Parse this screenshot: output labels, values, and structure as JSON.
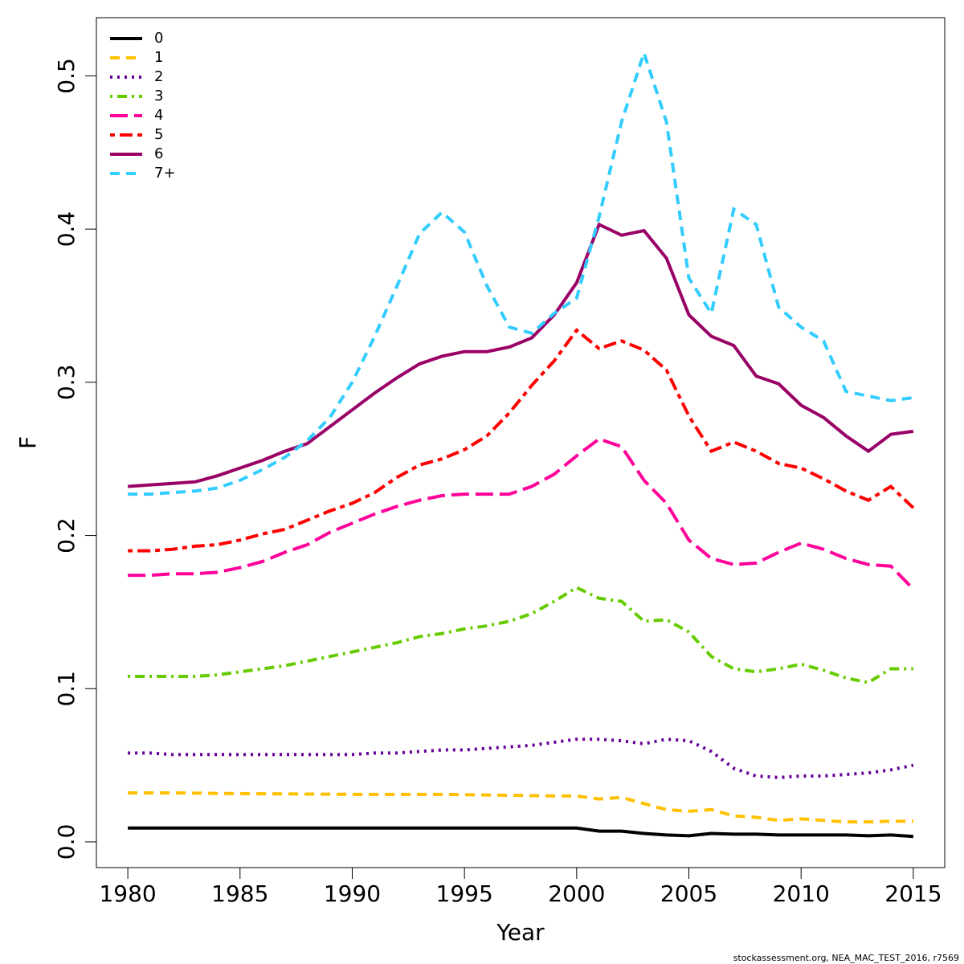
{
  "chart_data": {
    "type": "line",
    "xlabel": "Year",
    "ylabel": "F",
    "caption": "stockassessment.org, NEA_MAC_TEST_2016, r7569",
    "x": [
      1980,
      1981,
      1982,
      1983,
      1984,
      1985,
      1986,
      1987,
      1988,
      1989,
      1990,
      1991,
      1992,
      1993,
      1994,
      1995,
      1996,
      1997,
      1998,
      1999,
      2000,
      2001,
      2002,
      2003,
      2004,
      2005,
      2006,
      2007,
      2008,
      2009,
      2010,
      2011,
      2012,
      2013,
      2014,
      2015
    ],
    "xlim": [
      1978.6,
      2016.4
    ],
    "xticks": [
      1980,
      1985,
      1990,
      1995,
      2000,
      2005,
      2010,
      2015
    ],
    "ylim": [
      -0.0168,
      0.538
    ],
    "yticks": [
      {
        "value": 0,
        "label": "0.0"
      },
      0.1,
      0.2,
      0.3,
      0.4,
      0.5
    ],
    "legend": "topleft",
    "series": [
      {
        "name": "0",
        "color": "#000000",
        "dash": "solid",
        "values": [
          0.009,
          0.009,
          0.009,
          0.009,
          0.009,
          0.009,
          0.009,
          0.009,
          0.009,
          0.009,
          0.009,
          0.009,
          0.009,
          0.009,
          0.009,
          0.009,
          0.009,
          0.009,
          0.009,
          0.009,
          0.009,
          0.007,
          0.007,
          0.0055,
          0.0045,
          0.004,
          0.0055,
          0.005,
          0.005,
          0.0045,
          0.0045,
          0.0045,
          0.0045,
          0.004,
          0.0045,
          0.0035
        ]
      },
      {
        "name": "1",
        "color": "#ffc000",
        "dash": "dashed",
        "values": [
          0.032,
          0.032,
          0.032,
          0.0318,
          0.0316,
          0.0315,
          0.0314,
          0.0313,
          0.0312,
          0.0311,
          0.031,
          0.031,
          0.031,
          0.031,
          0.031,
          0.0308,
          0.0306,
          0.0304,
          0.0302,
          0.03,
          0.03,
          0.028,
          0.029,
          0.025,
          0.021,
          0.02,
          0.021,
          0.017,
          0.016,
          0.014,
          0.015,
          0.014,
          0.013,
          0.013,
          0.0135,
          0.0135
        ]
      },
      {
        "name": "2",
        "color": "#660099",
        "dash": "dotted",
        "values": [
          0.058,
          0.058,
          0.057,
          0.057,
          0.057,
          0.057,
          0.057,
          0.057,
          0.057,
          0.057,
          0.057,
          0.058,
          0.058,
          0.059,
          0.06,
          0.06,
          0.061,
          0.062,
          0.063,
          0.065,
          0.067,
          0.067,
          0.066,
          0.064,
          0.067,
          0.066,
          0.059,
          0.048,
          0.043,
          0.042,
          0.043,
          0.043,
          0.044,
          0.045,
          0.047,
          0.05
        ]
      },
      {
        "name": "3",
        "color": "#66cc00",
        "dash": "dotdash",
        "values": [
          0.108,
          0.108,
          0.108,
          0.108,
          0.109,
          0.111,
          0.113,
          0.115,
          0.118,
          0.121,
          0.124,
          0.127,
          0.13,
          0.134,
          0.136,
          0.139,
          0.141,
          0.144,
          0.149,
          0.157,
          0.166,
          0.159,
          0.157,
          0.144,
          0.145,
          0.137,
          0.121,
          0.113,
          0.111,
          0.113,
          0.116,
          0.112,
          0.107,
          0.104,
          0.113,
          0.113
        ]
      },
      {
        "name": "4",
        "color": "#ff0099",
        "dash": "longdash",
        "values": [
          0.174,
          0.174,
          0.175,
          0.175,
          0.176,
          0.179,
          0.183,
          0.189,
          0.194,
          0.202,
          0.208,
          0.214,
          0.219,
          0.223,
          0.226,
          0.227,
          0.227,
          0.227,
          0.232,
          0.24,
          0.252,
          0.263,
          0.258,
          0.236,
          0.221,
          0.197,
          0.185,
          0.181,
          0.182,
          0.189,
          0.195,
          0.191,
          0.185,
          0.181,
          0.18,
          0.165
        ]
      },
      {
        "name": "5",
        "color": "#ff0000",
        "dash": "twodash",
        "values": [
          0.19,
          0.19,
          0.191,
          0.193,
          0.194,
          0.197,
          0.201,
          0.204,
          0.21,
          0.216,
          0.221,
          0.228,
          0.238,
          0.246,
          0.25,
          0.256,
          0.265,
          0.28,
          0.298,
          0.314,
          0.334,
          0.322,
          0.327,
          0.321,
          0.308,
          0.278,
          0.255,
          0.261,
          0.255,
          0.247,
          0.244,
          0.237,
          0.229,
          0.223,
          0.232,
          0.218
        ]
      },
      {
        "name": "6",
        "color": "#990066",
        "dash": "solid",
        "values": [
          0.232,
          0.233,
          0.234,
          0.235,
          0.239,
          0.244,
          0.249,
          0.255,
          0.26,
          0.271,
          0.282,
          0.293,
          0.303,
          0.312,
          0.317,
          0.32,
          0.32,
          0.323,
          0.329,
          0.344,
          0.365,
          0.403,
          0.396,
          0.399,
          0.381,
          0.344,
          0.33,
          0.324,
          0.304,
          0.299,
          0.285,
          0.277,
          0.265,
          0.255,
          0.266,
          0.268
        ]
      },
      {
        "name": "7+",
        "color": "#33ccff",
        "dash": "dashed",
        "values": [
          0.227,
          0.227,
          0.228,
          0.229,
          0.231,
          0.236,
          0.243,
          0.251,
          0.262,
          0.277,
          0.3,
          0.33,
          0.363,
          0.397,
          0.411,
          0.398,
          0.363,
          0.336,
          0.332,
          0.345,
          0.355,
          0.408,
          0.47,
          0.515,
          0.47,
          0.368,
          0.345,
          0.413,
          0.403,
          0.349,
          0.336,
          0.327,
          0.294,
          0.291,
          0.288,
          0.29
        ]
      }
    ]
  }
}
